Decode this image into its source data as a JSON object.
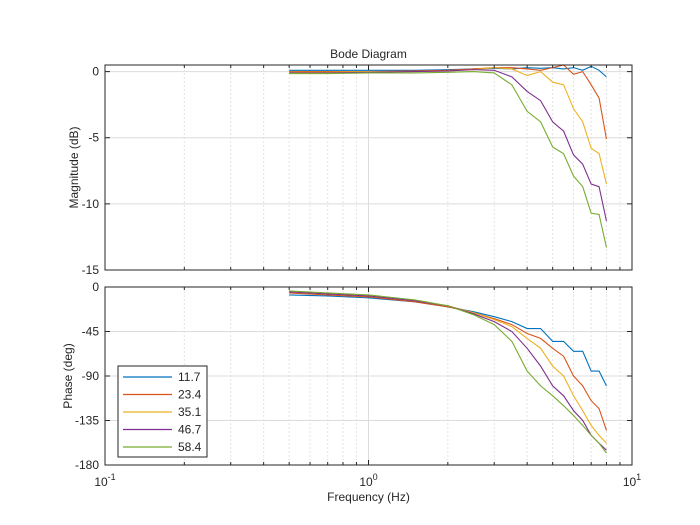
{
  "chart_data": {
    "type": "line",
    "title": "Bode Diagram",
    "xlabel": "Frequency  (Hz)",
    "xscale": "log",
    "xlim": [
      0.1,
      10
    ],
    "xticks": [
      {
        "value": 0.1,
        "base": "10",
        "exp": "-1"
      },
      {
        "value": 1,
        "base": "10",
        "exp": "0"
      },
      {
        "value": 10,
        "base": "10",
        "exp": "1"
      }
    ],
    "grid": true,
    "colors": [
      "#0072BD",
      "#D95319",
      "#EDB120",
      "#7E2F8E",
      "#77AC30"
    ],
    "legend": {
      "location": "bottom-left",
      "entries": [
        "11.7",
        "23.4",
        "35.1",
        "46.7",
        "58.4"
      ]
    },
    "x": [
      0.5,
      0.7,
      1,
      1.5,
      2,
      2.5,
      3,
      3.5,
      4,
      4.5,
      5,
      5.5,
      6,
      6.5,
      7,
      7.5,
      8
    ],
    "panels": [
      {
        "name": "magnitude",
        "ylabel": "Magnitude (dB)",
        "ylim": [
          -15,
          0.5
        ],
        "yticks": [
          0,
          -5,
          -10,
          -15
        ],
        "series": [
          {
            "values": [
              0.1,
              0.1,
              0.1,
              0.1,
              0.15,
              0.2,
              0.25,
              0.2,
              0.3,
              0.25,
              0.3,
              0.2,
              0.3,
              0.1,
              0.4,
              0.1,
              -0.4
            ]
          },
          {
            "values": [
              0.0,
              0.0,
              0.0,
              0.05,
              0.1,
              0.2,
              0.3,
              0.3,
              0.2,
              0.1,
              0.3,
              0.5,
              -0.2,
              0.0,
              -1.0,
              -2.0,
              -5.1
            ]
          },
          {
            "values": [
              -0.05,
              -0.05,
              0.0,
              0.0,
              0.05,
              0.15,
              0.3,
              0.2,
              -0.3,
              0.0,
              -0.8,
              -1.0,
              -2.8,
              -3.8,
              -5.8,
              -6.2,
              -8.5
            ]
          },
          {
            "values": [
              -0.1,
              -0.1,
              -0.05,
              0.0,
              0.05,
              0.15,
              0.1,
              -0.4,
              -1.5,
              -2.2,
              -3.8,
              -4.5,
              -6.3,
              -7.0,
              -8.5,
              -8.7,
              -11.3
            ]
          },
          {
            "values": [
              -0.15,
              -0.15,
              -0.1,
              -0.1,
              -0.05,
              0.0,
              -0.1,
              -1.0,
              -3.0,
              -3.8,
              -5.7,
              -6.2,
              -7.9,
              -8.7,
              -10.7,
              -10.8,
              -13.3
            ]
          }
        ]
      },
      {
        "name": "phase",
        "ylabel": "Phase (deg)",
        "xlabel": "Frequency  (Hz)",
        "ylim": [
          -180,
          0
        ],
        "yticks": [
          0,
          -45,
          -90,
          -135,
          -180
        ],
        "series": [
          {
            "values": [
              -8,
              -9,
              -11,
              -15,
              -20,
              -25,
              -30,
              -35,
              -42,
              -42,
              -55,
              -55,
              -65,
              -65,
              -85,
              -85,
              -100
            ]
          },
          {
            "values": [
              -6,
              -8,
              -10,
              -15,
              -20,
              -26,
              -32,
              -38,
              -47,
              -52,
              -62,
              -70,
              -90,
              -100,
              -115,
              -123,
              -145
            ]
          },
          {
            "values": [
              -5,
              -7,
              -9,
              -14,
              -19,
              -26,
              -33,
              -40,
              -52,
              -62,
              -80,
              -90,
              -110,
              -125,
              -140,
              -150,
              -158
            ]
          },
          {
            "values": [
              -5,
              -7,
              -9,
              -14,
              -19,
              -27,
              -35,
              -45,
              -62,
              -80,
              -100,
              -110,
              -125,
              -135,
              -150,
              -158,
              -165
            ]
          },
          {
            "values": [
              -4,
              -6,
              -8,
              -13,
              -19,
              -28,
              -38,
              -55,
              -85,
              -100,
              -110,
              -120,
              -130,
              -140,
              -150,
              -158,
              -168
            ]
          }
        ]
      }
    ]
  }
}
